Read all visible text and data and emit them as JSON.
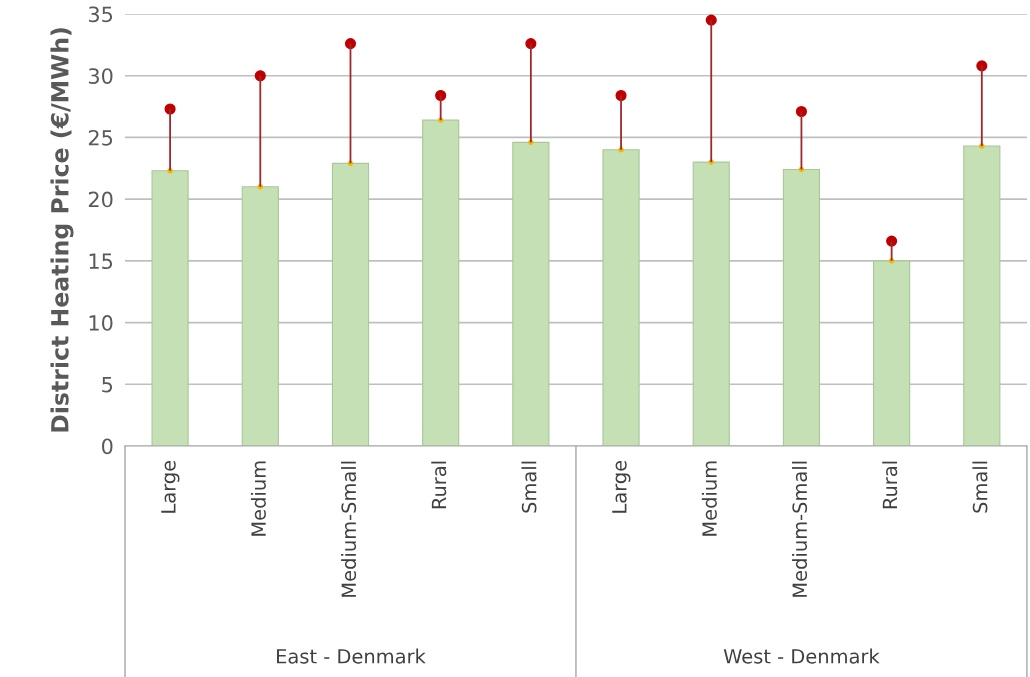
{
  "chart_data": {
    "type": "bar",
    "ylabel": "District Heating Price (€/MWh)",
    "categories": [
      "Large",
      "Medium",
      "Medium-Small",
      "Rural",
      "Small",
      "Large",
      "Medium",
      "Medium-Small",
      "Rural",
      "Small"
    ],
    "values": [
      22.3,
      21.0,
      22.9,
      26.4,
      24.6,
      24.0,
      23.0,
      22.4,
      15.0,
      24.3
    ],
    "errors": [
      [
        22.3,
        27.3
      ],
      [
        21.0,
        30.0
      ],
      [
        22.9,
        32.6
      ],
      [
        26.4,
        28.4
      ],
      [
        24.6,
        32.6
      ],
      [
        24.0,
        28.4
      ],
      [
        23.0,
        34.5
      ],
      [
        22.4,
        27.1
      ],
      [
        15.0,
        16.6
      ],
      [
        24.3,
        30.8
      ]
    ],
    "color": "#c5e0b4",
    "ylim": [
      0,
      35
    ],
    "yticks": [
      0,
      5,
      10,
      15,
      20,
      25,
      30,
      35
    ],
    "grid": "y",
    "annotations": [
      "East - Denmark",
      "West - Denmark"
    ]
  }
}
